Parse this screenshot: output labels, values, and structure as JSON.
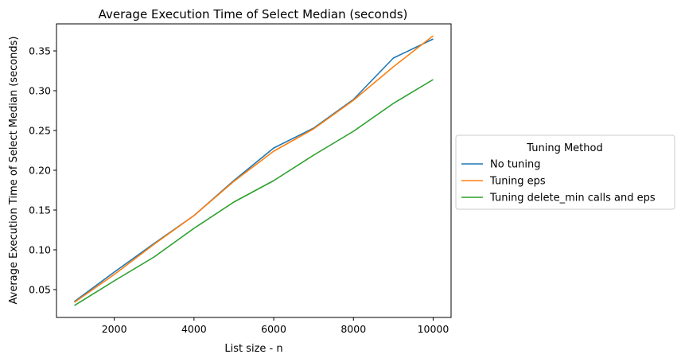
{
  "chart_data": {
    "type": "line",
    "title": "Average Execution Time of Select Median (seconds)",
    "xlabel": "List size - n",
    "ylabel": "Average Execution Time of Select Median (seconds)",
    "xlim": [
      550,
      10450
    ],
    "ylim": [
      0.015,
      0.384
    ],
    "xticks": [
      2000,
      4000,
      6000,
      8000,
      10000
    ],
    "xtick_labels": [
      "2000",
      "4000",
      "6000",
      "8000",
      "10000"
    ],
    "yticks": [
      0.05,
      0.1,
      0.15,
      0.2,
      0.25,
      0.3,
      0.35
    ],
    "ytick_labels": [
      "0.05",
      "0.10",
      "0.15",
      "0.20",
      "0.25",
      "0.30",
      "0.35"
    ],
    "grid": false,
    "legend": {
      "title": "Tuning Method",
      "placement": "center-right outside"
    },
    "x": [
      1000,
      2000,
      3000,
      4000,
      5000,
      6000,
      7000,
      8000,
      9000,
      10000
    ],
    "series": [
      {
        "name": "No tuning",
        "color": "#1f77b4",
        "values": [
          0.035,
          0.072,
          0.108,
          0.143,
          0.187,
          0.228,
          0.253,
          0.289,
          0.341,
          0.365
        ]
      },
      {
        "name": "Tuning eps",
        "color": "#ff7f0e",
        "values": [
          0.034,
          0.069,
          0.107,
          0.143,
          0.186,
          0.224,
          0.252,
          0.288,
          0.33,
          0.369
        ]
      },
      {
        "name": "Tuning delete_min calls and eps",
        "color": "#2ca02c",
        "values": [
          0.03,
          0.061,
          0.091,
          0.127,
          0.16,
          0.187,
          0.219,
          0.249,
          0.284,
          0.314
        ]
      }
    ]
  }
}
